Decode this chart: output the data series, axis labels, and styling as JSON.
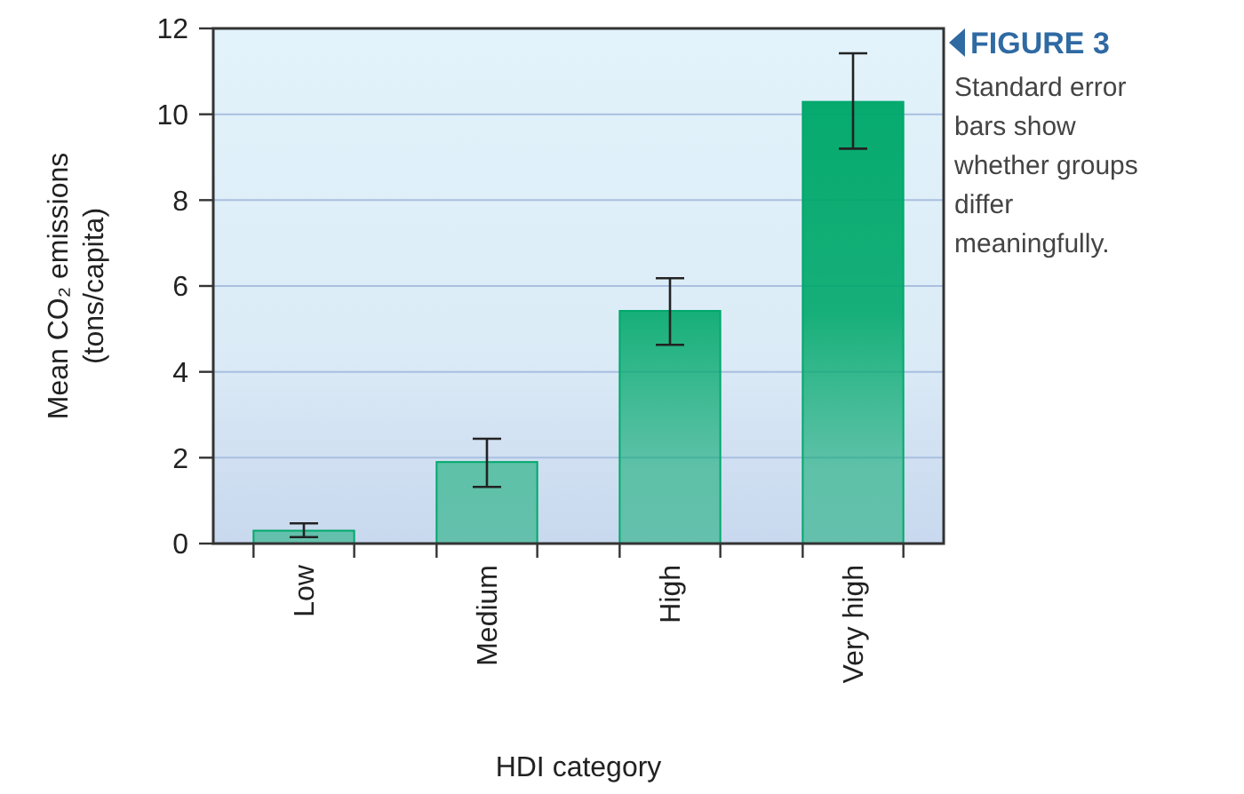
{
  "chart_data": {
    "type": "bar",
    "title": "FIGURE 3",
    "annotations": [
      "Standard error bars show whether groups differ meaningfully."
    ],
    "xlabel": "HDI category",
    "ylabel": "Mean CO₂ emissions (tons/capita)",
    "categories": [
      "Low",
      "Medium",
      "High",
      "Very high"
    ],
    "values": [
      0.3,
      1.9,
      5.42,
      10.29
    ],
    "color": "#00a86b",
    "errors": [
      [
        0.15,
        0.47
      ],
      [
        1.32,
        2.44
      ],
      [
        4.63,
        6.18
      ],
      [
        9.2,
        11.42
      ]
    ],
    "ylim": [
      0,
      12
    ],
    "yticks": [
      0,
      2,
      4,
      6,
      8,
      10,
      12
    ],
    "grid": "y"
  }
}
